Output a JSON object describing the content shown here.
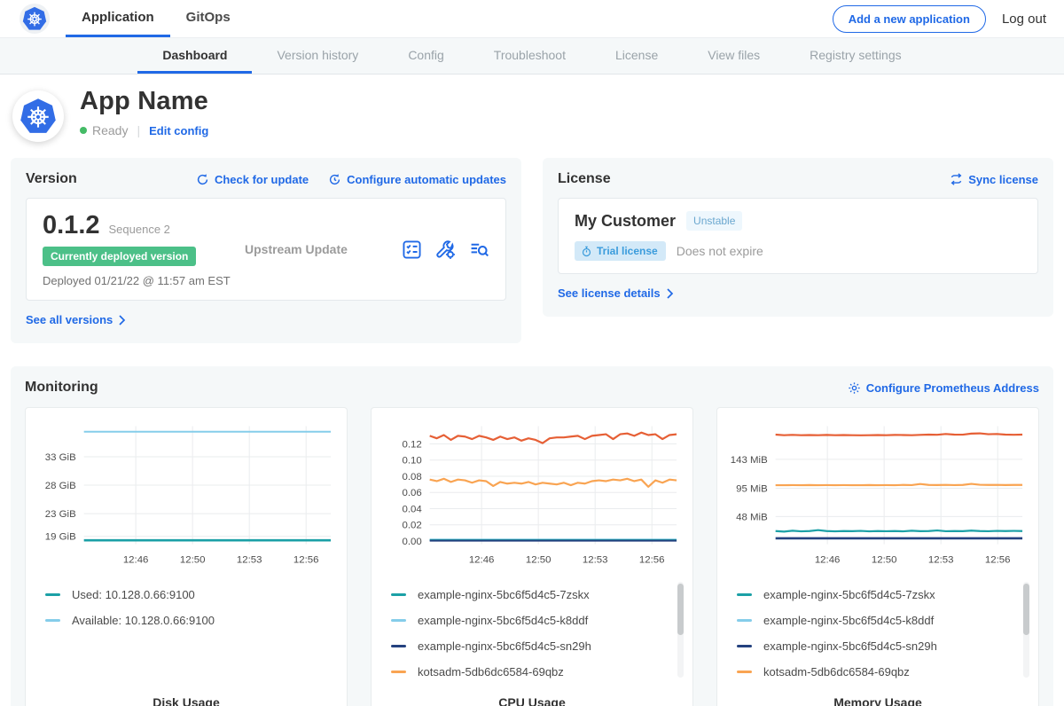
{
  "topnav": {
    "tabs": [
      {
        "label": "Application",
        "active": true
      },
      {
        "label": "GitOps",
        "active": false
      }
    ],
    "add_button": "Add a new application",
    "logout": "Log out"
  },
  "subnav": {
    "active": "Dashboard",
    "tabs": [
      "Dashboard",
      "Version history",
      "Config",
      "Troubleshoot",
      "License",
      "View files",
      "Registry settings"
    ]
  },
  "app_header": {
    "title": "App Name",
    "status": "Ready",
    "edit_config": "Edit config"
  },
  "version_card": {
    "title": "Version",
    "check_update": "Check for update",
    "configure_updates": "Configure automatic updates",
    "version": "0.1.2",
    "sequence": "Sequence 2",
    "deployed_badge": "Currently deployed version",
    "deployed_date": "Deployed 01/21/22 @ 11:57 am EST",
    "upstream": "Upstream Update",
    "see_all": "See all versions"
  },
  "license_card": {
    "title": "License",
    "sync": "Sync license",
    "customer": "My Customer",
    "channel_badge": "Unstable",
    "type_badge": "Trial license",
    "expiry": "Does not expire",
    "details": "See license details"
  },
  "monitoring": {
    "title": "Monitoring",
    "configure_link": "Configure Prometheus Address"
  },
  "colors": {
    "accent": "#2069e6",
    "green_badge": "#4cc088",
    "ready_dot": "#44bb66",
    "trial_badge_bg": "#d3e9f8",
    "trial_badge_text": "#3b9cdc",
    "unstable_badge_bg": "#eef7fd",
    "unstable_badge_text": "#6aa7cf",
    "teal": "#1ba0a6",
    "lightblue": "#85cdea",
    "navy": "#24417f",
    "orange": "#f9a452",
    "red": "#e65f35"
  },
  "chart_data": [
    {
      "type": "line",
      "title": "Disk Usage",
      "ylim": [
        17.6,
        38.4
      ],
      "y_ticks": [
        {
          "v": 19,
          "label": "19 GiB"
        },
        {
          "v": 23,
          "label": "23 GiB"
        },
        {
          "v": 28,
          "label": "28 GiB"
        },
        {
          "v": 33,
          "label": "33 GiB"
        }
      ],
      "x_ticks": [
        {
          "f": 0.21,
          "label": "12:46"
        },
        {
          "f": 0.44,
          "label": "12:50"
        },
        {
          "f": 0.67,
          "label": "12:53"
        },
        {
          "f": 0.9,
          "label": "12:56"
        }
      ],
      "grid": true,
      "scrollbar": false,
      "series": [
        {
          "name": "Available: 10.128.0.66:9100",
          "color": "#85cdea",
          "width": 2,
          "values": [
            37.4,
            37.4
          ]
        },
        {
          "name": "Used: 10.128.0.66:9100",
          "color": "#1ba0a6",
          "width": 2.6,
          "values": [
            18.3,
            18.3
          ]
        }
      ],
      "legend": [
        {
          "label": "Used: 10.128.0.66:9100",
          "color": "#1ba0a6"
        },
        {
          "label": "Available: 10.128.0.66:9100",
          "color": "#85cdea"
        }
      ]
    },
    {
      "type": "line",
      "title": "CPU Usage",
      "ylim": [
        -0.004,
        0.142
      ],
      "y_ticks": [
        {
          "v": 0,
          "label": "0.00"
        },
        {
          "v": 0.02,
          "label": "0.02"
        },
        {
          "v": 0.04,
          "label": "0.04"
        },
        {
          "v": 0.06,
          "label": "0.06"
        },
        {
          "v": 0.08,
          "label": "0.08"
        },
        {
          "v": 0.1,
          "label": "0.10"
        },
        {
          "v": 0.12,
          "label": "0.12"
        }
      ],
      "x_ticks": [
        {
          "f": 0.21,
          "label": "12:46"
        },
        {
          "f": 0.44,
          "label": "12:50"
        },
        {
          "f": 0.67,
          "label": "12:53"
        },
        {
          "f": 0.9,
          "label": "12:56"
        }
      ],
      "grid": true,
      "scrollbar": true,
      "series": [
        {
          "name": "",
          "color": "#e65f35",
          "width": 2.2,
          "values": [
            0.13,
            0.127,
            0.131,
            0.125,
            0.13,
            0.129,
            0.126,
            0.13,
            0.128,
            0.125,
            0.129,
            0.126,
            0.128,
            0.124,
            0.127,
            0.125,
            0.121,
            0.127,
            0.128,
            0.128,
            0.129,
            0.13,
            0.126,
            0.13,
            0.131,
            0.132,
            0.126,
            0.132,
            0.133,
            0.13,
            0.134,
            0.131,
            0.132,
            0.126,
            0.131,
            0.132
          ]
        },
        {
          "name": "kotsadm-5db6dc6584-69qbz",
          "color": "#f9a452",
          "width": 2.2,
          "values": [
            0.076,
            0.074,
            0.077,
            0.073,
            0.076,
            0.075,
            0.072,
            0.075,
            0.074,
            0.068,
            0.073,
            0.071,
            0.072,
            0.071,
            0.073,
            0.07,
            0.072,
            0.071,
            0.07,
            0.072,
            0.069,
            0.072,
            0.071,
            0.074,
            0.075,
            0.074,
            0.076,
            0.075,
            0.077,
            0.074,
            0.076,
            0.067,
            0.075,
            0.072,
            0.076,
            0.075
          ]
        },
        {
          "name": "example-nginx-5bc6f5d4c5-k8ddf",
          "color": "#85cdea",
          "width": 2,
          "values": [
            0.0018,
            0.0018
          ]
        },
        {
          "name": "example-nginx-5bc6f5d4c5-7zskx",
          "color": "#1ba0a6",
          "width": 2,
          "values": [
            0.0012,
            0.0012
          ]
        },
        {
          "name": "example-nginx-5bc6f5d4c5-sn29h",
          "color": "#24417f",
          "width": 2,
          "values": [
            0.0005,
            0.0005
          ]
        }
      ],
      "legend": [
        {
          "label": "example-nginx-5bc6f5d4c5-7zskx",
          "color": "#1ba0a6"
        },
        {
          "label": "example-nginx-5bc6f5d4c5-k8ddf",
          "color": "#85cdea"
        },
        {
          "label": "example-nginx-5bc6f5d4c5-sn29h",
          "color": "#24417f"
        },
        {
          "label": "kotsadm-5db6dc6584-69qbz",
          "color": "#f9a452"
        }
      ]
    },
    {
      "type": "line",
      "title": "Memory Usage",
      "ylim": [
        2,
        198
      ],
      "y_ticks": [
        {
          "v": 48,
          "label": "48 MiB"
        },
        {
          "v": 95,
          "label": "95 MiB"
        },
        {
          "v": 143,
          "label": "143 MiB"
        }
      ],
      "x_ticks": [
        {
          "f": 0.21,
          "label": "12:46"
        },
        {
          "f": 0.44,
          "label": "12:50"
        },
        {
          "f": 0.67,
          "label": "12:53"
        },
        {
          "f": 0.9,
          "label": "12:56"
        }
      ],
      "grid": true,
      "scrollbar": true,
      "series": [
        {
          "name": "",
          "color": "#e65f35",
          "width": 2.2,
          "values": [
            184,
            183,
            183.5,
            183,
            183.2,
            183,
            183.4,
            183,
            183.2,
            183,
            182.8,
            183,
            183.2,
            183,
            183.4,
            183.2,
            183,
            183.5,
            184,
            183.6,
            185,
            184,
            183.8,
            185.5,
            186,
            184.5,
            185,
            184,
            183.6,
            184
          ]
        },
        {
          "name": "kotsadm-5db6dc6584-69qbz",
          "color": "#f9a452",
          "width": 2.2,
          "values": [
            100,
            100,
            100.2,
            100,
            100.3,
            100,
            100.1,
            100,
            100.2,
            100,
            100,
            100.3,
            100,
            100.2,
            100,
            100.4,
            100.2,
            102,
            100.5,
            100.3,
            100.6,
            100.2,
            100.4,
            102.2,
            100.8,
            100.4,
            100.6,
            100.3,
            100.5,
            100.4
          ]
        },
        {
          "name": "example-nginx-5bc6f5d4c5-7zskx",
          "color": "#1ba0a6",
          "width": 2.2,
          "values": [
            24,
            23,
            24.5,
            23.5,
            24,
            25.5,
            24,
            23.5,
            24,
            23.8,
            24.2,
            23.5,
            24,
            23.6,
            24,
            23.5,
            24.5,
            23.8,
            24,
            25,
            23.6,
            24,
            23.8,
            24.6,
            24,
            23.7,
            24.2,
            24,
            24.3,
            24
          ]
        },
        {
          "name": "example-nginx-5bc6f5d4c5-sn29h",
          "color": "#24417f",
          "width": 2.6,
          "values": [
            12,
            12
          ]
        }
      ],
      "legend": [
        {
          "label": "example-nginx-5bc6f5d4c5-7zskx",
          "color": "#1ba0a6"
        },
        {
          "label": "example-nginx-5bc6f5d4c5-k8ddf",
          "color": "#85cdea"
        },
        {
          "label": "example-nginx-5bc6f5d4c5-sn29h",
          "color": "#24417f"
        },
        {
          "label": "kotsadm-5db6dc6584-69qbz",
          "color": "#f9a452"
        }
      ]
    }
  ]
}
